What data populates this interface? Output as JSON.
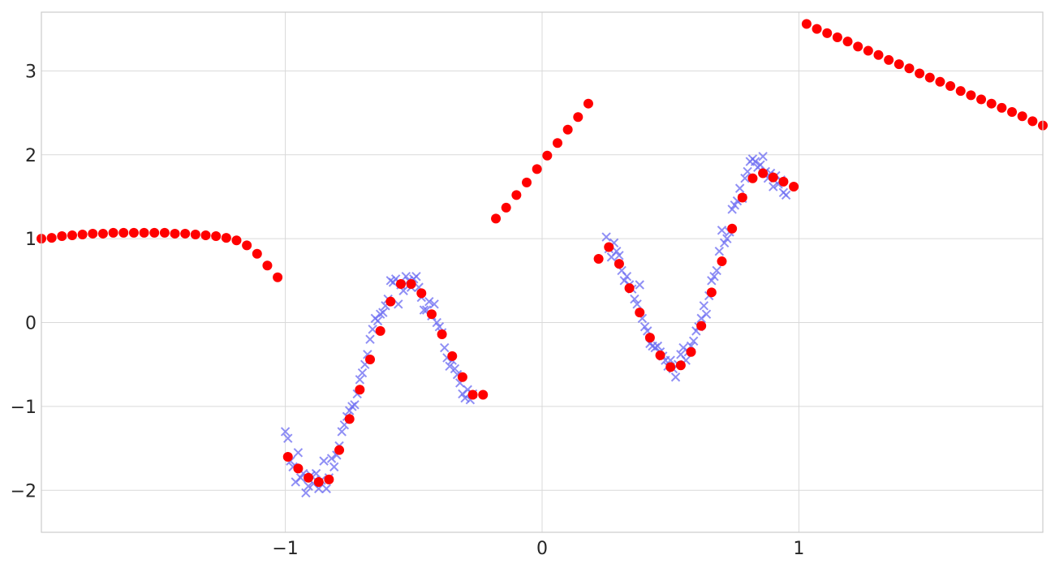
{
  "chart_data": {
    "type": "scatter",
    "title": "",
    "xlabel": "",
    "ylabel": "",
    "xlim": [
      -1.95,
      1.95
    ],
    "ylim": [
      -2.5,
      3.7
    ],
    "grid": true,
    "x_ticks": [
      {
        "value": -1,
        "label": "−1"
      },
      {
        "value": 0,
        "label": "0"
      },
      {
        "value": 1,
        "label": "1"
      }
    ],
    "y_ticks": [
      {
        "value": 3,
        "label": "3"
      },
      {
        "value": 2,
        "label": "2"
      },
      {
        "value": 1,
        "label": "1"
      },
      {
        "value": 0,
        "label": "0"
      },
      {
        "value": -1,
        "label": "−1"
      },
      {
        "value": -2,
        "label": "−2"
      }
    ],
    "series": [
      {
        "marker": "x",
        "color": "#6a6af2",
        "opacity": 0.75,
        "points": [
          [
            -1.0,
            -1.3
          ],
          [
            -0.99,
            -1.38
          ],
          [
            -0.98,
            -1.65
          ],
          [
            -0.97,
            -1.72
          ],
          [
            -0.96,
            -1.9
          ],
          [
            -0.95,
            -1.55
          ],
          [
            -0.94,
            -1.85
          ],
          [
            -0.93,
            -1.8
          ],
          [
            -0.92,
            -2.03
          ],
          [
            -0.91,
            -1.95
          ],
          [
            -0.9,
            -1.82
          ],
          [
            -0.89,
            -1.92
          ],
          [
            -0.88,
            -1.8
          ],
          [
            -0.87,
            -1.98
          ],
          [
            -0.86,
            -1.88
          ],
          [
            -0.85,
            -1.65
          ],
          [
            -0.84,
            -1.98
          ],
          [
            -0.83,
            -1.85
          ],
          [
            -0.82,
            -1.62
          ],
          [
            -0.81,
            -1.72
          ],
          [
            -0.8,
            -1.58
          ],
          [
            -0.79,
            -1.47
          ],
          [
            -0.78,
            -1.3
          ],
          [
            -0.77,
            -1.22
          ],
          [
            -0.76,
            -1.12
          ],
          [
            -0.75,
            -1.05
          ],
          [
            -0.74,
            -1.0
          ],
          [
            -0.73,
            -0.98
          ],
          [
            -0.72,
            -0.85
          ],
          [
            -0.71,
            -0.68
          ],
          [
            -0.7,
            -0.6
          ],
          [
            -0.69,
            -0.5
          ],
          [
            -0.68,
            -0.38
          ],
          [
            -0.67,
            -0.2
          ],
          [
            -0.66,
            -0.08
          ],
          [
            -0.65,
            0.05
          ],
          [
            -0.64,
            0.02
          ],
          [
            -0.63,
            0.1
          ],
          [
            -0.62,
            0.12
          ],
          [
            -0.61,
            0.2
          ],
          [
            -0.6,
            0.28
          ],
          [
            -0.59,
            0.5
          ],
          [
            -0.58,
            0.48
          ],
          [
            -0.57,
            0.52
          ],
          [
            -0.56,
            0.22
          ],
          [
            -0.55,
            0.45
          ],
          [
            -0.54,
            0.38
          ],
          [
            -0.53,
            0.55
          ],
          [
            -0.52,
            0.5
          ],
          [
            -0.51,
            0.42
          ],
          [
            -0.5,
            0.52
          ],
          [
            -0.49,
            0.55
          ],
          [
            -0.48,
            0.42
          ],
          [
            -0.47,
            0.3
          ],
          [
            -0.46,
            0.15
          ],
          [
            -0.45,
            0.15
          ],
          [
            -0.44,
            0.25
          ],
          [
            -0.43,
            0.08
          ],
          [
            -0.42,
            0.22
          ],
          [
            -0.41,
            0.0
          ],
          [
            -0.4,
            -0.05
          ],
          [
            -0.39,
            -0.12
          ],
          [
            -0.38,
            -0.3
          ],
          [
            -0.37,
            -0.42
          ],
          [
            -0.36,
            -0.52
          ],
          [
            -0.35,
            -0.45
          ],
          [
            -0.34,
            -0.55
          ],
          [
            -0.33,
            -0.62
          ],
          [
            -0.32,
            -0.72
          ],
          [
            -0.31,
            -0.85
          ],
          [
            -0.3,
            -0.9
          ],
          [
            -0.29,
            -0.8
          ],
          [
            -0.28,
            -0.92
          ],
          [
            -0.27,
            -0.85
          ],
          [
            0.25,
            1.02
          ],
          [
            0.26,
            0.88
          ],
          [
            0.27,
            0.78
          ],
          [
            0.28,
            0.95
          ],
          [
            0.29,
            0.85
          ],
          [
            0.3,
            0.8
          ],
          [
            0.31,
            0.62
          ],
          [
            0.32,
            0.5
          ],
          [
            0.33,
            0.55
          ],
          [
            0.34,
            0.45
          ],
          [
            0.35,
            0.4
          ],
          [
            0.36,
            0.28
          ],
          [
            0.37,
            0.22
          ],
          [
            0.38,
            0.45
          ],
          [
            0.39,
            0.05
          ],
          [
            0.4,
            -0.05
          ],
          [
            0.41,
            -0.1
          ],
          [
            0.42,
            -0.25
          ],
          [
            0.43,
            -0.28
          ],
          [
            0.44,
            -0.3
          ],
          [
            0.45,
            -0.28
          ],
          [
            0.46,
            -0.35
          ],
          [
            0.47,
            -0.4
          ],
          [
            0.48,
            -0.45
          ],
          [
            0.49,
            -0.52
          ],
          [
            0.5,
            -0.45
          ],
          [
            0.51,
            -0.55
          ],
          [
            0.52,
            -0.65
          ],
          [
            0.53,
            -0.5
          ],
          [
            0.54,
            -0.38
          ],
          [
            0.55,
            -0.3
          ],
          [
            0.56,
            -0.45
          ],
          [
            0.57,
            -0.35
          ],
          [
            0.58,
            -0.28
          ],
          [
            0.59,
            -0.22
          ],
          [
            0.6,
            -0.1
          ],
          [
            0.61,
            -0.05
          ],
          [
            0.62,
            0.05
          ],
          [
            0.63,
            0.2
          ],
          [
            0.64,
            0.1
          ],
          [
            0.65,
            0.32
          ],
          [
            0.66,
            0.5
          ],
          [
            0.67,
            0.55
          ],
          [
            0.68,
            0.62
          ],
          [
            0.69,
            0.85
          ],
          [
            0.7,
            1.1
          ],
          [
            0.71,
            0.95
          ],
          [
            0.72,
            1.0
          ],
          [
            0.73,
            1.08
          ],
          [
            0.74,
            1.35
          ],
          [
            0.75,
            1.4
          ],
          [
            0.76,
            1.45
          ],
          [
            0.77,
            1.6
          ],
          [
            0.78,
            1.48
          ],
          [
            0.79,
            1.72
          ],
          [
            0.8,
            1.8
          ],
          [
            0.81,
            1.92
          ],
          [
            0.82,
            1.95
          ],
          [
            0.83,
            1.92
          ],
          [
            0.84,
            1.85
          ],
          [
            0.85,
            1.88
          ],
          [
            0.86,
            1.98
          ],
          [
            0.87,
            1.8
          ],
          [
            0.88,
            1.72
          ],
          [
            0.89,
            1.78
          ],
          [
            0.9,
            1.62
          ],
          [
            0.91,
            1.75
          ],
          [
            0.92,
            1.65
          ],
          [
            0.93,
            1.7
          ],
          [
            0.94,
            1.55
          ],
          [
            0.95,
            1.52
          ]
        ]
      },
      {
        "marker": "o",
        "color": "#ff0000",
        "opacity": 1,
        "points": [
          [
            -1.95,
            1.0
          ],
          [
            -1.91,
            1.01
          ],
          [
            -1.87,
            1.03
          ],
          [
            -1.83,
            1.04
          ],
          [
            -1.79,
            1.05
          ],
          [
            -1.75,
            1.06
          ],
          [
            -1.71,
            1.06
          ],
          [
            -1.67,
            1.07
          ],
          [
            -1.63,
            1.07
          ],
          [
            -1.59,
            1.07
          ],
          [
            -1.55,
            1.07
          ],
          [
            -1.51,
            1.07
          ],
          [
            -1.47,
            1.07
          ],
          [
            -1.43,
            1.06
          ],
          [
            -1.39,
            1.06
          ],
          [
            -1.35,
            1.05
          ],
          [
            -1.31,
            1.04
          ],
          [
            -1.27,
            1.03
          ],
          [
            -1.23,
            1.01
          ],
          [
            -1.19,
            0.98
          ],
          [
            -1.15,
            0.92
          ],
          [
            -1.11,
            0.82
          ],
          [
            -1.07,
            0.68
          ],
          [
            -1.03,
            0.54
          ],
          [
            -0.99,
            -1.6
          ],
          [
            -0.95,
            -1.74
          ],
          [
            -0.91,
            -1.85
          ],
          [
            -0.87,
            -1.9
          ],
          [
            -0.83,
            -1.87
          ],
          [
            -0.79,
            -1.52
          ],
          [
            -0.75,
            -1.15
          ],
          [
            -0.71,
            -0.8
          ],
          [
            -0.67,
            -0.44
          ],
          [
            -0.63,
            -0.1
          ],
          [
            -0.59,
            0.25
          ],
          [
            -0.55,
            0.46
          ],
          [
            -0.51,
            0.46
          ],
          [
            -0.47,
            0.35
          ],
          [
            -0.43,
            0.1
          ],
          [
            -0.39,
            -0.14
          ],
          [
            -0.35,
            -0.4
          ],
          [
            -0.31,
            -0.65
          ],
          [
            -0.27,
            -0.86
          ],
          [
            -0.23,
            -0.86
          ],
          [
            -0.18,
            1.24
          ],
          [
            -0.14,
            1.37
          ],
          [
            -0.1,
            1.52
          ],
          [
            -0.06,
            1.67
          ],
          [
            -0.02,
            1.83
          ],
          [
            0.02,
            1.99
          ],
          [
            0.06,
            2.14
          ],
          [
            0.1,
            2.3
          ],
          [
            0.14,
            2.45
          ],
          [
            0.18,
            2.61
          ],
          [
            0.22,
            0.76
          ],
          [
            0.26,
            0.9
          ],
          [
            0.3,
            0.7
          ],
          [
            0.34,
            0.41
          ],
          [
            0.38,
            0.12
          ],
          [
            0.42,
            -0.18
          ],
          [
            0.46,
            -0.39
          ],
          [
            0.5,
            -0.53
          ],
          [
            0.54,
            -0.51
          ],
          [
            0.58,
            -0.35
          ],
          [
            0.62,
            -0.04
          ],
          [
            0.66,
            0.36
          ],
          [
            0.7,
            0.73
          ],
          [
            0.74,
            1.12
          ],
          [
            0.78,
            1.49
          ],
          [
            0.82,
            1.72
          ],
          [
            0.86,
            1.78
          ],
          [
            0.9,
            1.73
          ],
          [
            0.94,
            1.68
          ],
          [
            0.98,
            1.62
          ],
          [
            1.03,
            3.56
          ],
          [
            1.07,
            3.5
          ],
          [
            1.11,
            3.45
          ],
          [
            1.15,
            3.4
          ],
          [
            1.19,
            3.35
          ],
          [
            1.23,
            3.29
          ],
          [
            1.27,
            3.24
          ],
          [
            1.31,
            3.19
          ],
          [
            1.35,
            3.13
          ],
          [
            1.39,
            3.08
          ],
          [
            1.43,
            3.03
          ],
          [
            1.47,
            2.97
          ],
          [
            1.51,
            2.92
          ],
          [
            1.55,
            2.87
          ],
          [
            1.59,
            2.82
          ],
          [
            1.63,
            2.76
          ],
          [
            1.67,
            2.71
          ],
          [
            1.71,
            2.66
          ],
          [
            1.75,
            2.61
          ],
          [
            1.79,
            2.56
          ],
          [
            1.83,
            2.51
          ],
          [
            1.87,
            2.46
          ],
          [
            1.91,
            2.4
          ],
          [
            1.95,
            2.35
          ]
        ]
      }
    ]
  }
}
